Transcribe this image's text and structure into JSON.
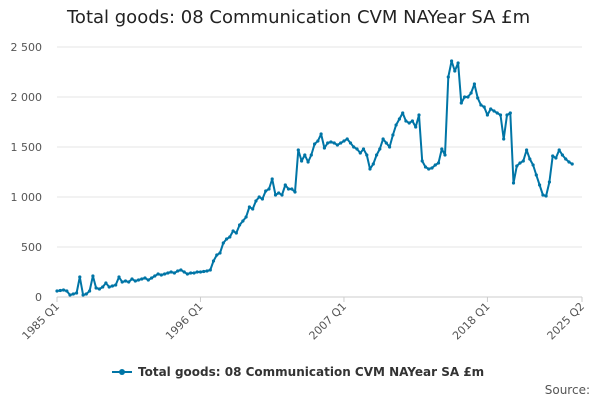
{
  "chart_data": {
    "type": "line",
    "title": "Total goods: 08 Communication CVM NAYear SA £m",
    "xlabel": "",
    "ylabel": "",
    "ylim": [
      0,
      2500
    ],
    "yticks": [
      0,
      500,
      1000,
      1500,
      2000,
      2500
    ],
    "ytick_labels": [
      "0",
      "500",
      "1 000",
      "1 500",
      "2 000",
      "2 500"
    ],
    "xlim": [
      1985.0,
      2025.25
    ],
    "xticks": [
      1985.0,
      1996.0,
      2007.0,
      2018.0,
      2025.25
    ],
    "xtick_labels": [
      "1985 Q1",
      "1996 Q1",
      "2007 Q1",
      "2018 Q1",
      "2025 Q2"
    ],
    "legend": "bottom",
    "series": [
      {
        "name": "Total goods: 08 Communication CVM NAYear SA £m",
        "color": "#0075a6",
        "points": [
          [
            1985.0,
            60
          ],
          [
            1985.25,
            65
          ],
          [
            1985.5,
            70
          ],
          [
            1985.75,
            60
          ],
          [
            1986.0,
            20
          ],
          [
            1986.25,
            30
          ],
          [
            1986.5,
            40
          ],
          [
            1986.75,
            200
          ],
          [
            1987.0,
            20
          ],
          [
            1987.25,
            30
          ],
          [
            1987.5,
            60
          ],
          [
            1987.75,
            210
          ],
          [
            1988.0,
            90
          ],
          [
            1988.25,
            80
          ],
          [
            1988.5,
            100
          ],
          [
            1988.75,
            140
          ],
          [
            1989.0,
            100
          ],
          [
            1989.25,
            110
          ],
          [
            1989.5,
            120
          ],
          [
            1989.75,
            200
          ],
          [
            1990.0,
            150
          ],
          [
            1990.25,
            160
          ],
          [
            1990.5,
            150
          ],
          [
            1990.75,
            180
          ],
          [
            1991.0,
            160
          ],
          [
            1991.25,
            170
          ],
          [
            1991.5,
            180
          ],
          [
            1991.75,
            190
          ],
          [
            1992.0,
            170
          ],
          [
            1992.25,
            190
          ],
          [
            1992.5,
            210
          ],
          [
            1992.75,
            230
          ],
          [
            1993.0,
            220
          ],
          [
            1993.25,
            230
          ],
          [
            1993.5,
            240
          ],
          [
            1993.75,
            250
          ],
          [
            1994.0,
            240
          ],
          [
            1994.25,
            260
          ],
          [
            1994.5,
            270
          ],
          [
            1994.75,
            250
          ],
          [
            1995.0,
            230
          ],
          [
            1995.25,
            240
          ],
          [
            1995.5,
            240
          ],
          [
            1995.75,
            250
          ],
          [
            1996.0,
            250
          ],
          [
            1996.25,
            255
          ],
          [
            1996.5,
            260
          ],
          [
            1996.75,
            270
          ],
          [
            1997.0,
            360
          ],
          [
            1997.25,
            420
          ],
          [
            1997.5,
            440
          ],
          [
            1997.75,
            540
          ],
          [
            1998.0,
            580
          ],
          [
            1998.25,
            600
          ],
          [
            1998.5,
            660
          ],
          [
            1998.75,
            640
          ],
          [
            1999.0,
            720
          ],
          [
            1999.25,
            760
          ],
          [
            1999.5,
            800
          ],
          [
            1999.75,
            900
          ],
          [
            2000.0,
            880
          ],
          [
            2000.25,
            960
          ],
          [
            2000.5,
            1000
          ],
          [
            2000.75,
            980
          ],
          [
            2001.0,
            1060
          ],
          [
            2001.25,
            1080
          ],
          [
            2001.5,
            1180
          ],
          [
            2001.75,
            1020
          ],
          [
            2002.0,
            1040
          ],
          [
            2002.25,
            1020
          ],
          [
            2002.5,
            1120
          ],
          [
            2002.75,
            1080
          ],
          [
            2003.0,
            1080
          ],
          [
            2003.25,
            1050
          ],
          [
            2003.5,
            1470
          ],
          [
            2003.75,
            1360
          ],
          [
            2004.0,
            1420
          ],
          [
            2004.25,
            1350
          ],
          [
            2004.5,
            1420
          ],
          [
            2004.75,
            1530
          ],
          [
            2005.0,
            1560
          ],
          [
            2005.25,
            1630
          ],
          [
            2005.5,
            1490
          ],
          [
            2005.75,
            1540
          ],
          [
            2006.0,
            1550
          ],
          [
            2006.25,
            1540
          ],
          [
            2006.5,
            1520
          ],
          [
            2006.75,
            1540
          ],
          [
            2007.0,
            1560
          ],
          [
            2007.25,
            1580
          ],
          [
            2007.5,
            1540
          ],
          [
            2007.75,
            1500
          ],
          [
            2008.0,
            1480
          ],
          [
            2008.25,
            1440
          ],
          [
            2008.5,
            1480
          ],
          [
            2008.75,
            1420
          ],
          [
            2009.0,
            1280
          ],
          [
            2009.25,
            1330
          ],
          [
            2009.5,
            1420
          ],
          [
            2009.75,
            1480
          ],
          [
            2010.0,
            1580
          ],
          [
            2010.25,
            1540
          ],
          [
            2010.5,
            1500
          ],
          [
            2010.75,
            1620
          ],
          [
            2011.0,
            1720
          ],
          [
            2011.25,
            1780
          ],
          [
            2011.5,
            1840
          ],
          [
            2011.75,
            1760
          ],
          [
            2012.0,
            1740
          ],
          [
            2012.25,
            1760
          ],
          [
            2012.5,
            1700
          ],
          [
            2012.75,
            1820
          ],
          [
            2013.0,
            1360
          ],
          [
            2013.25,
            1300
          ],
          [
            2013.5,
            1280
          ],
          [
            2013.75,
            1290
          ],
          [
            2014.0,
            1320
          ],
          [
            2014.25,
            1340
          ],
          [
            2014.5,
            1480
          ],
          [
            2014.75,
            1420
          ],
          [
            2015.0,
            2200
          ],
          [
            2015.25,
            2360
          ],
          [
            2015.5,
            2260
          ],
          [
            2015.75,
            2340
          ],
          [
            2016.0,
            1940
          ],
          [
            2016.25,
            2000
          ],
          [
            2016.5,
            2000
          ],
          [
            2016.75,
            2040
          ],
          [
            2017.0,
            2130
          ],
          [
            2017.25,
            1990
          ],
          [
            2017.5,
            1920
          ],
          [
            2017.75,
            1900
          ],
          [
            2018.0,
            1820
          ],
          [
            2018.25,
            1880
          ],
          [
            2018.5,
            1860
          ],
          [
            2018.75,
            1840
          ],
          [
            2019.0,
            1820
          ],
          [
            2019.25,
            1580
          ],
          [
            2019.5,
            1820
          ],
          [
            2019.75,
            1840
          ],
          [
            2020.0,
            1140
          ],
          [
            2020.25,
            1310
          ],
          [
            2020.5,
            1340
          ],
          [
            2020.75,
            1360
          ],
          [
            2021.0,
            1470
          ],
          [
            2021.25,
            1380
          ],
          [
            2021.5,
            1320
          ],
          [
            2021.75,
            1220
          ],
          [
            2022.0,
            1120
          ],
          [
            2022.25,
            1020
          ],
          [
            2022.5,
            1010
          ],
          [
            2022.75,
            1150
          ],
          [
            2023.0,
            1410
          ],
          [
            2023.25,
            1390
          ],
          [
            2023.5,
            1470
          ],
          [
            2023.75,
            1420
          ],
          [
            2024.0,
            1380
          ],
          [
            2024.25,
            1350
          ],
          [
            2024.5,
            1330
          ]
        ]
      }
    ]
  },
  "source_label": "Source:"
}
